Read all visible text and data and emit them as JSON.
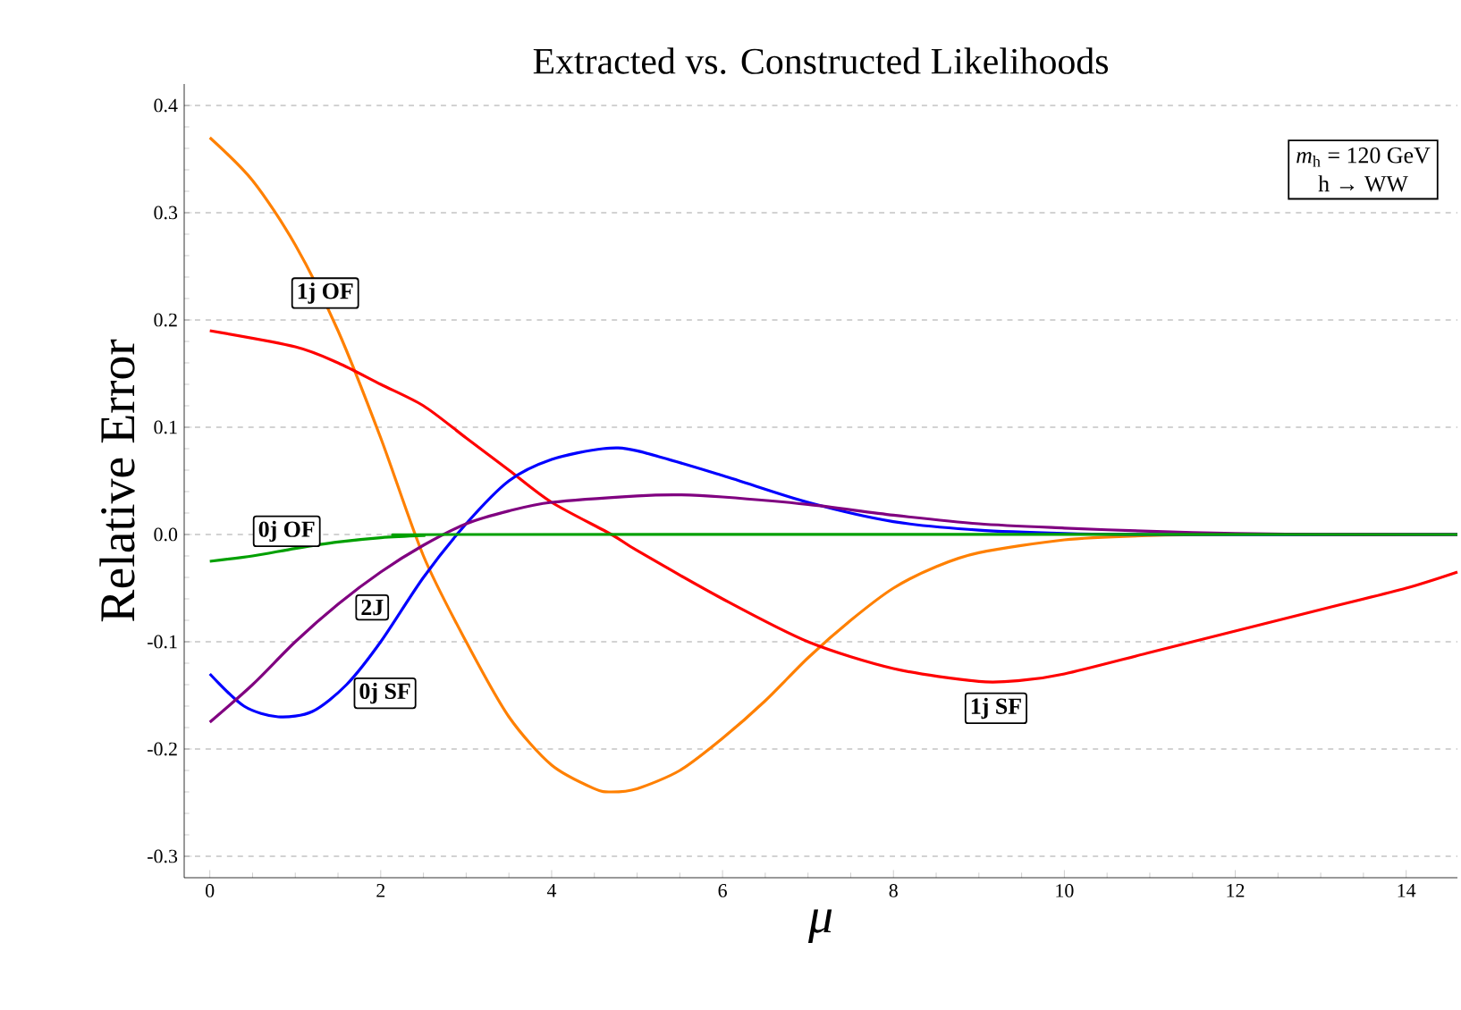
{
  "chart_data": {
    "type": "line",
    "title": "Extracted vs. Constructed Likelihoods",
    "xlabel": "μ",
    "ylabel": "Relative Error",
    "annotations": [
      "*m*$_{h}$ = 120 GeV",
      "h → WW"
    ],
    "xlim": [
      -0.3,
      14.6
    ],
    "ylim": [
      -0.32,
      0.42
    ],
    "xticks": [
      0,
      2,
      4,
      6,
      8,
      10,
      12,
      14
    ],
    "yticks": [
      -0.3,
      -0.2,
      -0.1,
      {
        "value": 0,
        "label": "0.0"
      },
      0.1,
      0.2,
      0.3,
      0.4
    ],
    "grid": "y",
    "line_style": "solid",
    "marker": "none",
    "series": [
      {
        "name": "1j OF",
        "color": "#ff8000",
        "x": [
          0,
          0.5,
          1,
          1.5,
          2,
          2.5,
          3,
          3.5,
          4,
          4.5,
          4.7,
          5,
          5.5,
          6,
          6.5,
          7,
          7.5,
          8,
          8.5,
          9,
          10,
          11,
          12,
          14.6
        ],
        "values": [
          0.37,
          0.33,
          0.27,
          0.19,
          0.09,
          -0.02,
          -0.1,
          -0.17,
          -0.215,
          -0.237,
          -0.24,
          -0.237,
          -0.22,
          -0.19,
          -0.155,
          -0.115,
          -0.08,
          -0.05,
          -0.03,
          -0.017,
          -0.005,
          -0.001,
          0,
          0
        ]
      },
      {
        "name": "1j SF",
        "color": "#ff0000",
        "x": [
          0,
          1,
          1.5,
          2,
          2.5,
          3,
          3.5,
          4,
          4.7,
          5,
          6,
          7,
          8,
          9,
          9.5,
          10,
          11,
          12,
          13,
          14,
          14.6
        ],
        "values": [
          0.19,
          0.175,
          0.16,
          0.14,
          0.12,
          0.09,
          0.06,
          0.03,
          0,
          -0.015,
          -0.06,
          -0.1,
          -0.125,
          -0.137,
          -0.136,
          -0.13,
          -0.11,
          -0.09,
          -0.07,
          -0.05,
          -0.035
        ]
      },
      {
        "name": "0j SF",
        "color": "#0000ff",
        "x": [
          0,
          0.4,
          0.8,
          1.2,
          1.6,
          2,
          2.5,
          3,
          3.5,
          4,
          4.6,
          5,
          6,
          7,
          8,
          9,
          10,
          11,
          14.6
        ],
        "values": [
          -0.13,
          -0.16,
          -0.17,
          -0.165,
          -0.14,
          -0.1,
          -0.04,
          0.01,
          0.05,
          0.07,
          0.08,
          0.078,
          0.055,
          0.03,
          0.012,
          0.004,
          0.001,
          0,
          0
        ]
      },
      {
        "name": "2J",
        "color": "#800080",
        "x": [
          0,
          0.5,
          1,
          1.5,
          2,
          2.5,
          3,
          3.5,
          4,
          5,
          5.5,
          6,
          7,
          8,
          9,
          10,
          11,
          12,
          13,
          14.6
        ],
        "values": [
          -0.175,
          -0.14,
          -0.1,
          -0.065,
          -0.035,
          -0.01,
          0.01,
          0.022,
          0.03,
          0.036,
          0.037,
          0.035,
          0.028,
          0.018,
          0.01,
          0.006,
          0.003,
          0.001,
          0,
          0
        ]
      },
      {
        "name": "0j OF",
        "color": "#00a000",
        "x": [
          0,
          0.5,
          1,
          1.5,
          2,
          2.5,
          3,
          14.6
        ],
        "values": [
          -0.025,
          -0.02,
          -0.013,
          -0.007,
          -0.003,
          -0.001,
          0,
          0
        ]
      }
    ]
  }
}
